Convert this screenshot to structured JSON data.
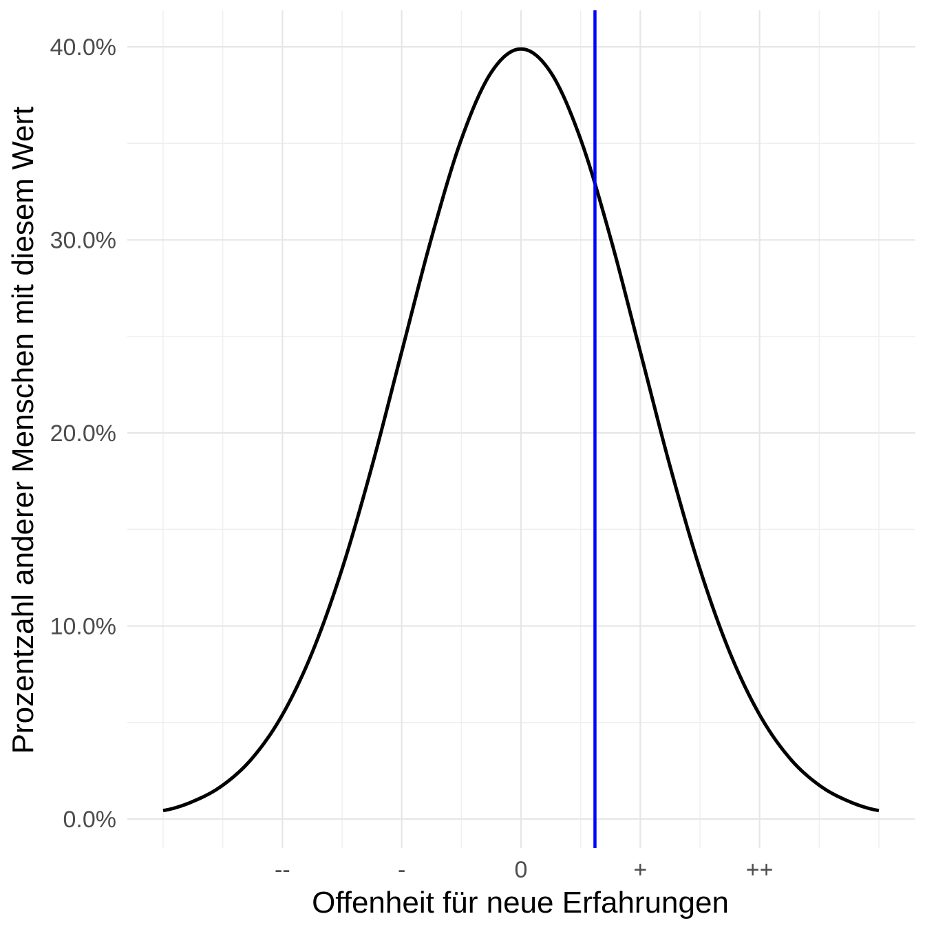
{
  "chart_data": {
    "type": "line",
    "title": "",
    "xlabel": "Offenheit für neue Erfahrungen",
    "ylabel": "Prozentzahl anderer Menschen mit diesem Wert",
    "xlim": [
      -3,
      3
    ],
    "ylim": [
      0,
      0.4
    ],
    "x_ticks": [
      {
        "value": -2,
        "label": "--"
      },
      {
        "value": -1,
        "label": "-"
      },
      {
        "value": 0,
        "label": "0"
      },
      {
        "value": 1,
        "label": "+"
      },
      {
        "value": 2,
        "label": "++"
      }
    ],
    "y_ticks": [
      {
        "value": 0.0,
        "label": "0.0%"
      },
      {
        "value": 0.1,
        "label": "10.0%"
      },
      {
        "value": 0.2,
        "label": "20.0%"
      },
      {
        "value": 0.3,
        "label": "30.0%"
      },
      {
        "value": 0.4,
        "label": "40.0%"
      }
    ],
    "series": [
      {
        "values_description_free": true,
        "color": "#000000",
        "x": [
          -3.0,
          -2.75,
          -2.5,
          -2.25,
          -2.0,
          -1.75,
          -1.5,
          -1.25,
          -1.0,
          -0.75,
          -0.5,
          -0.25,
          0.0,
          0.25,
          0.5,
          0.75,
          1.0,
          1.25,
          1.5,
          1.75,
          2.0,
          2.25,
          2.5,
          2.75,
          3.0
        ],
        "y": [
          0.0044,
          0.0091,
          0.0175,
          0.0317,
          0.054,
          0.0863,
          0.1295,
          0.1826,
          0.242,
          0.3011,
          0.3521,
          0.3867,
          0.3989,
          0.3867,
          0.3521,
          0.3011,
          0.242,
          0.1826,
          0.1295,
          0.0863,
          0.054,
          0.0317,
          0.0175,
          0.0091,
          0.0044
        ]
      }
    ],
    "vline": {
      "x": 0.62,
      "color": "#0000ff"
    },
    "grid": true,
    "legend": "none"
  }
}
